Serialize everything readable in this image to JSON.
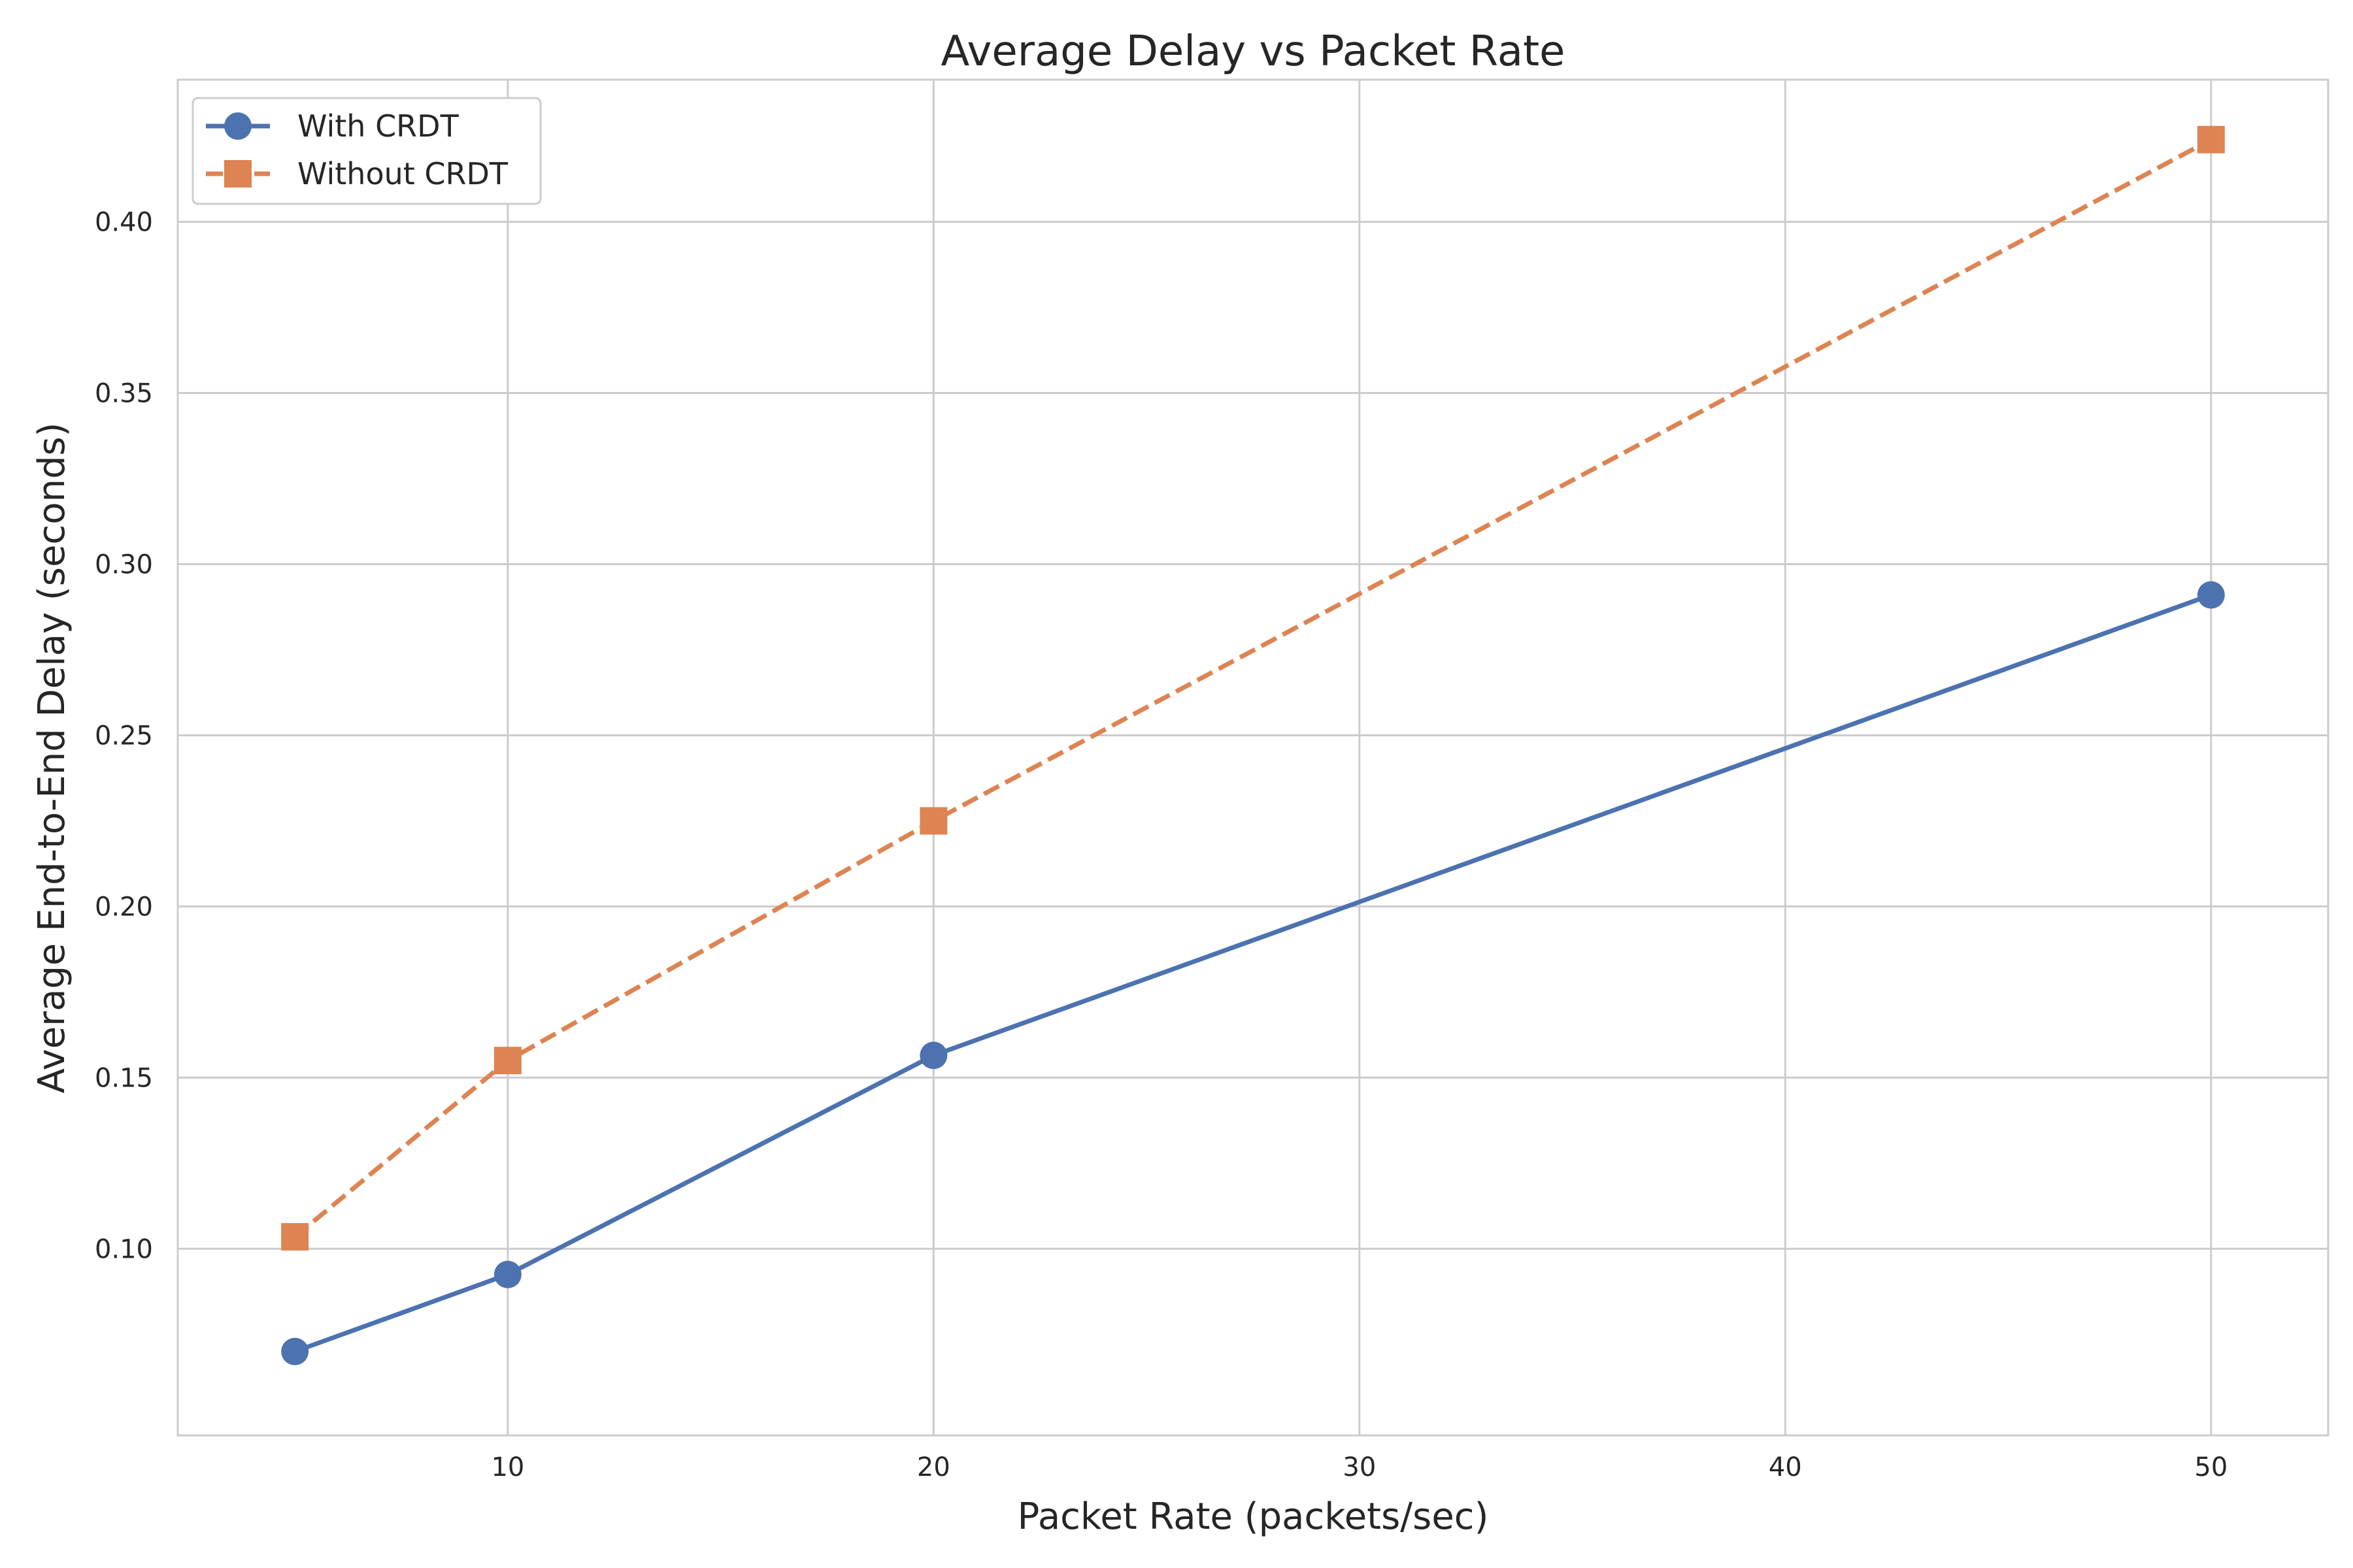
{
  "chart_data": {
    "type": "line",
    "title": "Average Delay vs Packet Rate",
    "xlabel": "Packet Rate (packets/sec)",
    "ylabel": "Average End-to-End Delay (seconds)",
    "x": [
      5,
      10,
      20,
      50
    ],
    "series": [
      {
        "name": "With CRDT",
        "values": [
          0.07,
          0.0925,
          0.1565,
          0.291
        ],
        "color": "#4c72b0",
        "marker": "circle",
        "linestyle": "solid"
      },
      {
        "name": "Without CRDT",
        "values": [
          0.1035,
          0.155,
          0.225,
          0.424
        ],
        "color": "#dd8452",
        "marker": "square",
        "linestyle": "dashed"
      }
    ],
    "xlim": [
      2.25,
      52.75
    ],
    "ylim": [
      0.0455,
      0.4415
    ],
    "xticks": [
      10,
      20,
      30,
      40,
      50
    ],
    "xtick_labels": [
      "10",
      "20",
      "30",
      "40",
      "50"
    ],
    "yticks": [
      0.1,
      0.15,
      0.2,
      0.25,
      0.3,
      0.35,
      0.4
    ],
    "ytick_labels": [
      "0.10",
      "0.15",
      "0.20",
      "0.25",
      "0.30",
      "0.35",
      "0.40"
    ],
    "grid": true,
    "legend_position": "top-left"
  }
}
